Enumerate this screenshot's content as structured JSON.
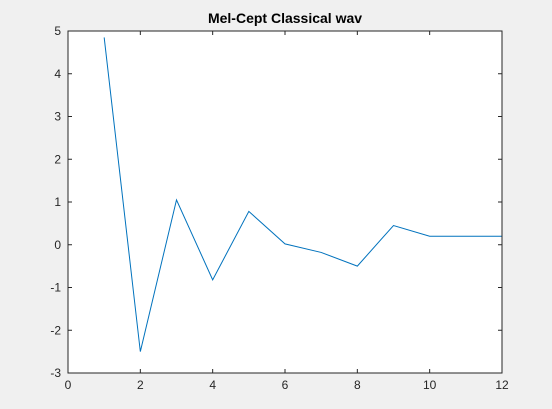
{
  "figure": {
    "background": "#f0f0f0",
    "axes_background": "#ffffff",
    "axes_color": "#262626",
    "line_color": "#0072bd"
  },
  "chart_data": {
    "type": "line",
    "title": "Mel-Cept Classical wav",
    "xlabel": "",
    "ylabel": "",
    "xlim": [
      0,
      12
    ],
    "ylim": [
      -3,
      5
    ],
    "xticks": [
      0,
      2,
      4,
      6,
      8,
      10,
      12
    ],
    "yticks": [
      -3,
      -2,
      -1,
      0,
      1,
      2,
      3,
      4,
      5
    ],
    "grid": false,
    "series": [
      {
        "x": [
          1,
          2,
          3,
          4,
          5,
          6,
          7,
          8,
          9,
          10,
          11,
          12
        ],
        "y": [
          4.85,
          -2.5,
          1.05,
          -0.82,
          0.78,
          0.02,
          -0.18,
          -0.5,
          0.45,
          0.2,
          0.2,
          0.2
        ]
      }
    ]
  }
}
